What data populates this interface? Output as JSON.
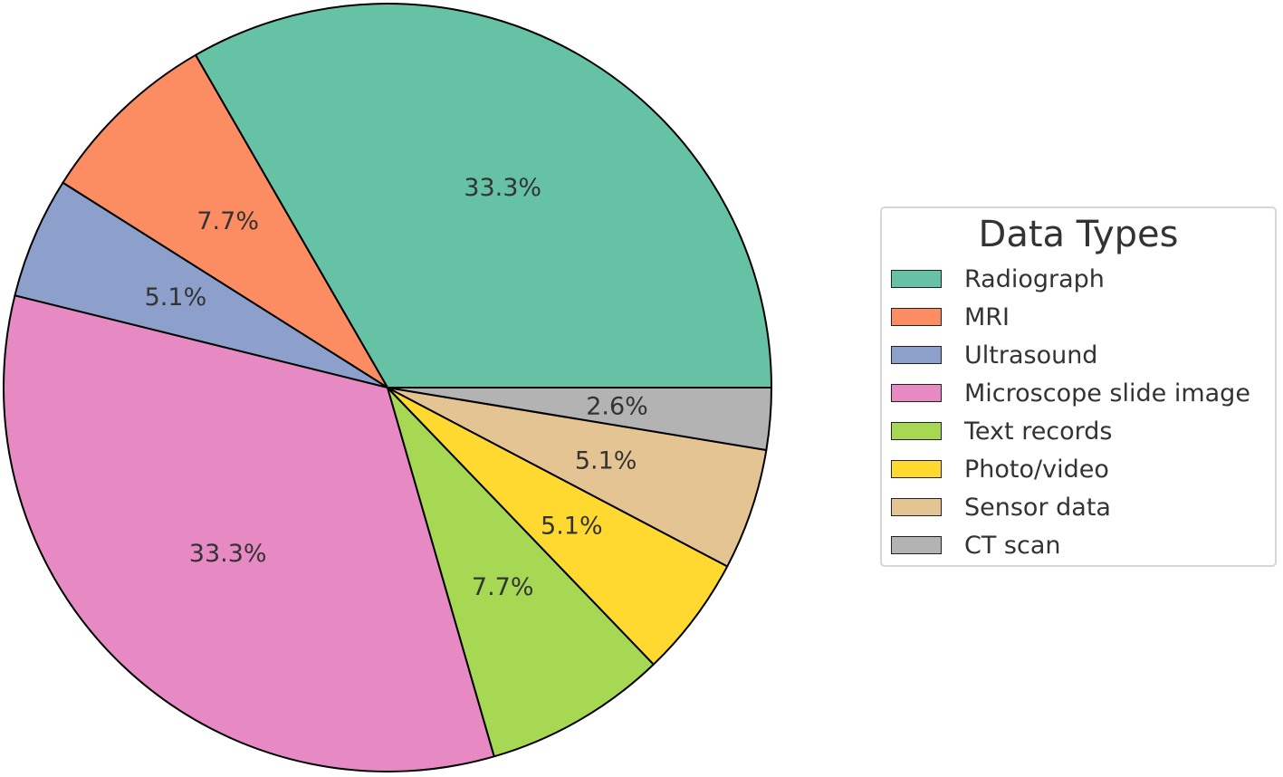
{
  "chart_data": {
    "type": "pie",
    "title": "",
    "categories": [
      "Radiograph",
      "MRI",
      "Ultrasound",
      "Microscope slide image",
      "Text records",
      "Photo/video",
      "Sensor data",
      "CT scan"
    ],
    "values": [
      33.3,
      7.7,
      5.1,
      33.3,
      7.7,
      5.1,
      5.1,
      2.6
    ],
    "value_labels": [
      "33.3%",
      "7.7%",
      "5.1%",
      "33.3%",
      "7.7%",
      "5.1%",
      "5.1%",
      "2.6%"
    ],
    "colors": [
      "#66c2a5",
      "#fc8d62",
      "#8da0cb",
      "#e78ac3",
      "#a6d854",
      "#ffd92f",
      "#e5c494",
      "#b3b3b3"
    ],
    "start_angle_deg": 0,
    "direction": "counterclockwise",
    "legend": {
      "title": "Data Types",
      "placement": "right"
    }
  }
}
